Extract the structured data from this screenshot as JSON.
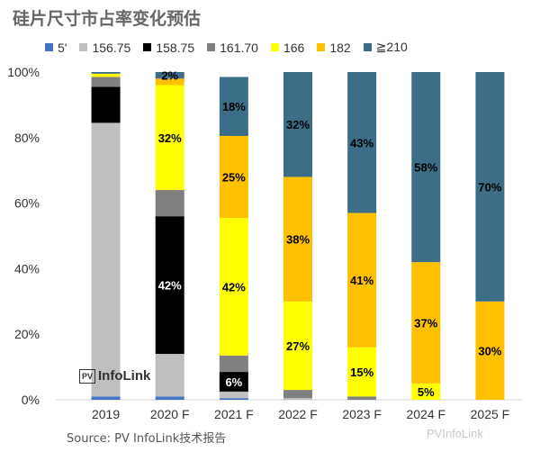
{
  "title": "硅片尺寸市占率变化预估",
  "source": "Source: PV InfoLink技术报告",
  "logo": {
    "mark": "PV",
    "text": "InfoLink"
  },
  "watermark": "PVInfoLink",
  "chart_data": {
    "type": "bar",
    "stacked": true,
    "categories": [
      "2019",
      "2020 F",
      "2021 F",
      "2022 F",
      "2023 F",
      "2024 F",
      "2025 F"
    ],
    "y_ticks": [
      "0%",
      "20%",
      "40%",
      "60%",
      "80%",
      "100%"
    ],
    "ylim": [
      0,
      100
    ],
    "legend_position": "top",
    "series": [
      {
        "name": "5'",
        "color": "#4472c4",
        "values": [
          1,
          1,
          0.5,
          0,
          0,
          0,
          0
        ]
      },
      {
        "name": "156.75",
        "color": "#bfbfbf",
        "values": [
          83.5,
          13,
          2,
          0.5,
          0,
          0,
          0
        ]
      },
      {
        "name": "158.75",
        "color": "#000000",
        "values": [
          11,
          42,
          6,
          0,
          0,
          0,
          0
        ]
      },
      {
        "name": "161.70",
        "color": "#808080",
        "values": [
          3,
          8,
          5,
          2.5,
          1,
          0,
          0
        ]
      },
      {
        "name": "166",
        "color": "#ffff00",
        "values": [
          1,
          32,
          42,
          27,
          15,
          5,
          0
        ]
      },
      {
        "name": "182",
        "color": "#ffc000",
        "values": [
          0,
          2,
          25,
          38,
          41,
          37,
          30
        ]
      },
      {
        "name": "≧210",
        "color": "#3d6e87",
        "values": [
          0.5,
          2,
          18,
          32,
          43,
          58,
          70
        ]
      }
    ],
    "labels": [
      {
        "cat": 1,
        "series": 2,
        "text": "42%",
        "color": "#ffffff"
      },
      {
        "cat": 1,
        "series": 4,
        "text": "32%",
        "color": "#000000"
      },
      {
        "cat": 1,
        "series": 6,
        "text": "2%",
        "color": "#000000"
      },
      {
        "cat": 2,
        "series": 2,
        "text": "6%",
        "color": "#ffffff"
      },
      {
        "cat": 2,
        "series": 4,
        "text": "42%",
        "color": "#000000"
      },
      {
        "cat": 2,
        "series": 5,
        "text": "25%",
        "color": "#000000"
      },
      {
        "cat": 2,
        "series": 6,
        "text": "18%",
        "color": "#000000"
      },
      {
        "cat": 3,
        "series": 4,
        "text": "27%",
        "color": "#000000"
      },
      {
        "cat": 3,
        "series": 5,
        "text": "38%",
        "color": "#000000"
      },
      {
        "cat": 3,
        "series": 6,
        "text": "32%",
        "color": "#000000"
      },
      {
        "cat": 4,
        "series": 4,
        "text": "15%",
        "color": "#000000"
      },
      {
        "cat": 4,
        "series": 5,
        "text": "41%",
        "color": "#000000"
      },
      {
        "cat": 4,
        "series": 6,
        "text": "43%",
        "color": "#000000"
      },
      {
        "cat": 5,
        "series": 4,
        "text": "5%",
        "color": "#000000"
      },
      {
        "cat": 5,
        "series": 5,
        "text": "37%",
        "color": "#000000"
      },
      {
        "cat": 5,
        "series": 6,
        "text": "58%",
        "color": "#000000"
      },
      {
        "cat": 6,
        "series": 5,
        "text": "30%",
        "color": "#000000"
      },
      {
        "cat": 6,
        "series": 6,
        "text": "70%",
        "color": "#000000"
      }
    ]
  }
}
